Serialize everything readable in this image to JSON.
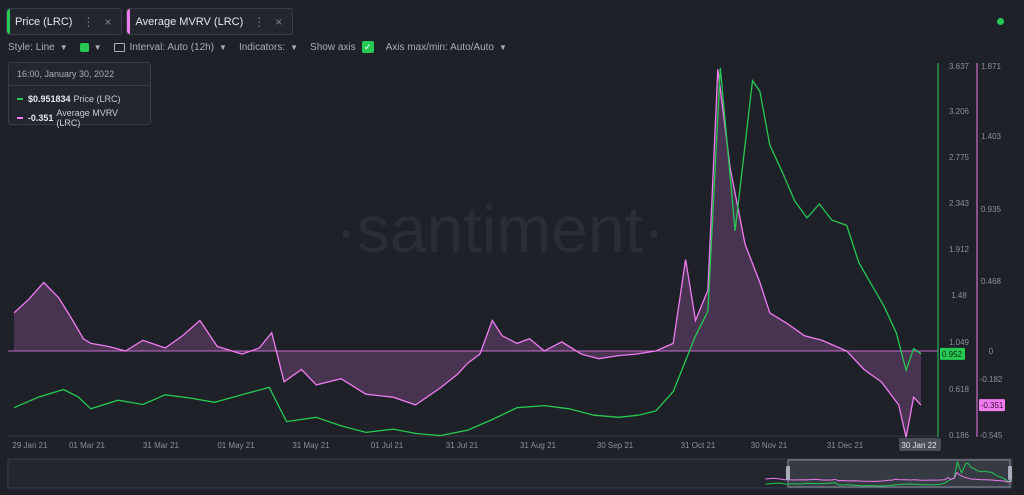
{
  "tabs": [
    {
      "label": "Price (LRC)",
      "color": "#26c953"
    },
    {
      "label": "Average MVRV (LRC)",
      "color": "#f07cf0"
    }
  ],
  "toolbar": {
    "style_label": "Style: Line",
    "interval_label": "Interval: Auto (12h)",
    "indicators_label": "Indicators:",
    "show_axis_label": "Show axis",
    "axis_minmax_label": "Axis max/min: Auto/Auto",
    "show_axis_checked": true
  },
  "tooltip": {
    "date": "16:00, January 30, 2022",
    "rows": [
      {
        "value": "$0.951834",
        "label": "Price (LRC)"
      },
      {
        "value": "-0.351",
        "label": "Average MVRV (LRC)"
      }
    ]
  },
  "watermark": "·santiment·",
  "colors": {
    "price": "#26c953",
    "mvrv": "#f07cf0",
    "bg": "#1f2128",
    "status_dot": "#26c953"
  },
  "chart_data": {
    "type": "line",
    "x_ticks": [
      "29 Jan 21",
      "01 Mar 21",
      "31 Mar 21",
      "01 May 21",
      "31 May 21",
      "01 Jul 21",
      "31 Jul 21",
      "31 Aug 21",
      "30 Sep 21",
      "31 Oct 21",
      "30 Nov 21",
      "31 Dec 21",
      "30 Jan 22"
    ],
    "price_axis": {
      "ticks": [
        "3.637",
        "3.206",
        "2.775",
        "2.343",
        "1.912",
        "1.48",
        "1.049",
        "0.618",
        "0.186"
      ],
      "range": [
        0.186,
        3.637
      ],
      "current": "0.952"
    },
    "mvrv_axis": {
      "ticks": [
        "1.871",
        "1.403",
        "0.935",
        "0.468",
        "0",
        "-0.182",
        "-0.545"
      ],
      "current": "-0.351"
    },
    "series": [
      {
        "name": "Price (LRC)",
        "axis": "price",
        "points": [
          [
            "29 Jan 21",
            0.45
          ],
          [
            "08 Feb 21",
            0.55
          ],
          [
            "18 Feb 21",
            0.62
          ],
          [
            "24 Feb 21",
            0.55
          ],
          [
            "01 Mar 21",
            0.44
          ],
          [
            "12 Mar 21",
            0.52
          ],
          [
            "22 Mar 21",
            0.48
          ],
          [
            "31 Mar 21",
            0.57
          ],
          [
            "10 Apr 21",
            0.54
          ],
          [
            "20 Apr 21",
            0.5
          ],
          [
            "01 May 21",
            0.57
          ],
          [
            "12 May 21",
            0.64
          ],
          [
            "19 May 21",
            0.32
          ],
          [
            "31 May 21",
            0.36
          ],
          [
            "10 Jun 21",
            0.28
          ],
          [
            "20 Jun 21",
            0.22
          ],
          [
            "01 Jul 21",
            0.25
          ],
          [
            "10 Jul 21",
            0.21
          ],
          [
            "20 Jul 21",
            0.19
          ],
          [
            "31 Jul 21",
            0.24
          ],
          [
            "10 Aug 21",
            0.34
          ],
          [
            "20 Aug 21",
            0.45
          ],
          [
            "31 Aug 21",
            0.47
          ],
          [
            "10 Sep 21",
            0.44
          ],
          [
            "20 Sep 21",
            0.38
          ],
          [
            "30 Sep 21",
            0.36
          ],
          [
            "08 Oct 21",
            0.38
          ],
          [
            "15 Oct 21",
            0.42
          ],
          [
            "22 Oct 21",
            0.6
          ],
          [
            "31 Oct 21",
            1.12
          ],
          [
            "05 Nov 21",
            1.35
          ],
          [
            "10 Nov 21",
            3.62
          ],
          [
            "16 Nov 21",
            2.1
          ],
          [
            "23 Nov 21",
            3.5
          ],
          [
            "26 Nov 21",
            3.4
          ],
          [
            "30 Nov 21",
            2.9
          ],
          [
            "05 Dec 21",
            2.65
          ],
          [
            "10 Dec 21",
            2.38
          ],
          [
            "15 Dec 21",
            2.22
          ],
          [
            "20 Dec 21",
            2.35
          ],
          [
            "25 Dec 21",
            2.2
          ],
          [
            "31 Dec 21",
            2.15
          ],
          [
            "05 Jan 22",
            1.8
          ],
          [
            "10 Jan 22",
            1.6
          ],
          [
            "15 Jan 22",
            1.4
          ],
          [
            "20 Jan 22",
            1.15
          ],
          [
            "24 Jan 22",
            0.8
          ],
          [
            "27 Jan 22",
            1.0
          ],
          [
            "30 Jan 22",
            0.952
          ]
        ]
      },
      {
        "name": "Average MVRV (LRC)",
        "axis": "mvrv",
        "points": [
          [
            "29 Jan 21",
            0.25
          ],
          [
            "04 Feb 21",
            0.34
          ],
          [
            "10 Feb 21",
            0.45
          ],
          [
            "16 Feb 21",
            0.35
          ],
          [
            "21 Feb 21",
            0.22
          ],
          [
            "26 Feb 21",
            0.08
          ],
          [
            "01 Mar 21",
            0.05
          ],
          [
            "08 Mar 21",
            0.03
          ],
          [
            "15 Mar 21",
            0.0
          ],
          [
            "22 Mar 21",
            0.07
          ],
          [
            "31 Mar 21",
            0.02
          ],
          [
            "07 Apr 21",
            0.1
          ],
          [
            "14 Apr 21",
            0.2
          ],
          [
            "21 Apr 21",
            0.03
          ],
          [
            "01 May 21",
            -0.02
          ],
          [
            "08 May 21",
            0.02
          ],
          [
            "13 May 21",
            0.12
          ],
          [
            "18 May 21",
            -0.2
          ],
          [
            "25 May 21",
            -0.12
          ],
          [
            "31 May 21",
            -0.22
          ],
          [
            "10 Jun 21",
            -0.18
          ],
          [
            "20 Jun 21",
            -0.28
          ],
          [
            "01 Jul 21",
            -0.3
          ],
          [
            "10 Jul 21",
            -0.35
          ],
          [
            "20 Jul 21",
            -0.24
          ],
          [
            "27 Jul 21",
            -0.15
          ],
          [
            "31 Jul 21",
            -0.08
          ],
          [
            "05 Aug 21",
            -0.02
          ],
          [
            "10 Aug 21",
            0.2
          ],
          [
            "14 Aug 21",
            0.1
          ],
          [
            "20 Aug 21",
            0.05
          ],
          [
            "25 Aug 21",
            0.08
          ],
          [
            "31 Aug 21",
            0.0
          ],
          [
            "07 Sep 21",
            0.06
          ],
          [
            "15 Sep 21",
            -0.02
          ],
          [
            "22 Sep 21",
            -0.05
          ],
          [
            "30 Sep 21",
            -0.03
          ],
          [
            "07 Oct 21",
            -0.02
          ],
          [
            "15 Oct 21",
            0.0
          ],
          [
            "22 Oct 21",
            0.05
          ],
          [
            "27 Oct 21",
            0.6
          ],
          [
            "31 Oct 21",
            0.2
          ],
          [
            "05 Nov 21",
            0.4
          ],
          [
            "09 Nov 21",
            1.85
          ],
          [
            "14 Nov 21",
            1.2
          ],
          [
            "20 Nov 21",
            0.7
          ],
          [
            "26 Nov 21",
            0.45
          ],
          [
            "30 Nov 21",
            0.25
          ],
          [
            "07 Dec 21",
            0.18
          ],
          [
            "14 Dec 21",
            0.1
          ],
          [
            "21 Dec 21",
            0.07
          ],
          [
            "31 Dec 21",
            0.0
          ],
          [
            "07 Jan 22",
            -0.12
          ],
          [
            "14 Jan 22",
            -0.2
          ],
          [
            "21 Jan 22",
            -0.35
          ],
          [
            "24 Jan 22",
            -0.56
          ],
          [
            "27 Jan 22",
            -0.3
          ],
          [
            "30 Jan 22",
            -0.351
          ]
        ]
      }
    ]
  }
}
